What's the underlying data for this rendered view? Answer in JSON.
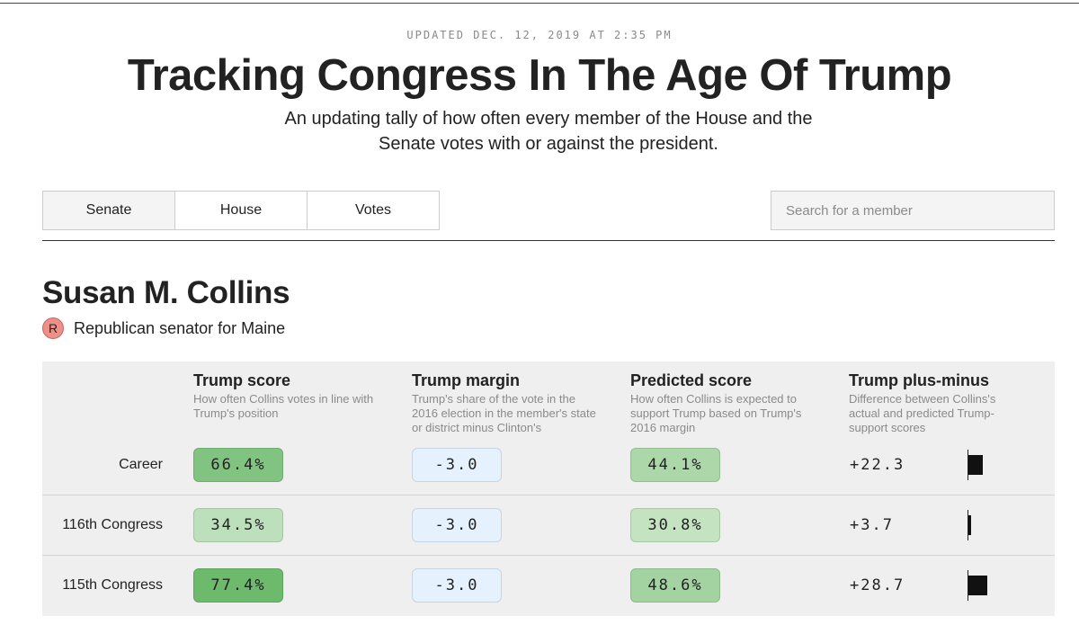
{
  "header": {
    "updated": "UPDATED DEC. 12, 2019 AT 2:35 PM",
    "title": "Tracking Congress In The Age Of Trump",
    "subtitle": "An updating tally of how often every member of the House and the Senate votes with or against the president."
  },
  "nav": {
    "tabs": [
      {
        "label": "Senate",
        "selected": true
      },
      {
        "label": "House",
        "selected": false
      },
      {
        "label": "Votes",
        "selected": false
      }
    ],
    "search_placeholder": "Search for a member"
  },
  "member": {
    "name": "Susan M. Collins",
    "party_letter": "R",
    "party_color": "#ee8f88",
    "description": "Republican senator for Maine"
  },
  "columns": [
    {
      "title": "Trump score",
      "desc": "How often Collins votes in line with Trump's position"
    },
    {
      "title": "Trump margin",
      "desc": "Trump's share of the vote in the 2016 election in the member's state or district minus Clinton's"
    },
    {
      "title": "Predicted score",
      "desc": "How often Collins is expected to support Trump based on Trump's 2016 margin"
    },
    {
      "title": "Trump plus-minus",
      "desc": "Difference between Collins's actual and predicted Trump-support scores"
    }
  ],
  "rows": [
    {
      "label": "Career",
      "trump_score": "66.4%",
      "score_value": 66.4,
      "trump_margin": "-3.0",
      "predicted": "44.1%",
      "predicted_value": 44.1,
      "plus_minus": "+22.3",
      "plus_minus_value": 22.3
    },
    {
      "label": "116th Congress",
      "trump_score": "34.5%",
      "score_value": 34.5,
      "trump_margin": "-3.0",
      "predicted": "30.8%",
      "predicted_value": 30.8,
      "plus_minus": "+3.7",
      "plus_minus_value": 3.7
    },
    {
      "label": "115th Congress",
      "trump_score": "77.4%",
      "score_value": 77.4,
      "trump_margin": "-3.0",
      "predicted": "48.6%",
      "predicted_value": 48.6,
      "plus_minus": "+28.7",
      "plus_minus_value": 28.7
    }
  ]
}
